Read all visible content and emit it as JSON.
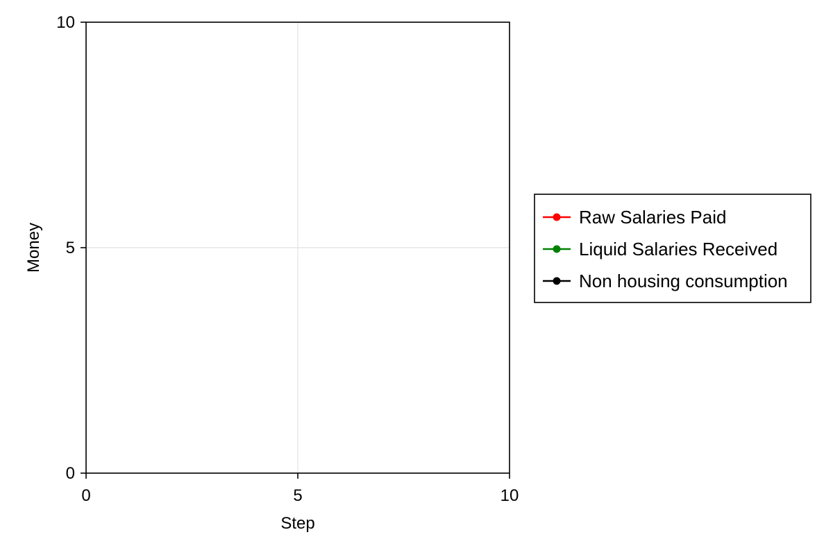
{
  "chart_data": {
    "type": "line",
    "title": "",
    "xlabel": "Step",
    "ylabel": "Money",
    "xlim": [
      0,
      10
    ],
    "ylim": [
      0,
      10
    ],
    "xticks": [
      0,
      5,
      10
    ],
    "yticks": [
      0,
      5,
      10
    ],
    "xtick_labels": [
      "0",
      "5",
      "10"
    ],
    "ytick_labels": [
      "0",
      "5",
      "10"
    ],
    "grid": true,
    "legend_position": "right",
    "series": [
      {
        "name": "Raw Salaries Paid",
        "color": "#ff0000",
        "x": [],
        "y": []
      },
      {
        "name": "Liquid Salaries Received",
        "color": "#008000",
        "x": [],
        "y": []
      },
      {
        "name": "Non housing consumption",
        "color": "#000000",
        "x": [],
        "y": []
      }
    ]
  }
}
